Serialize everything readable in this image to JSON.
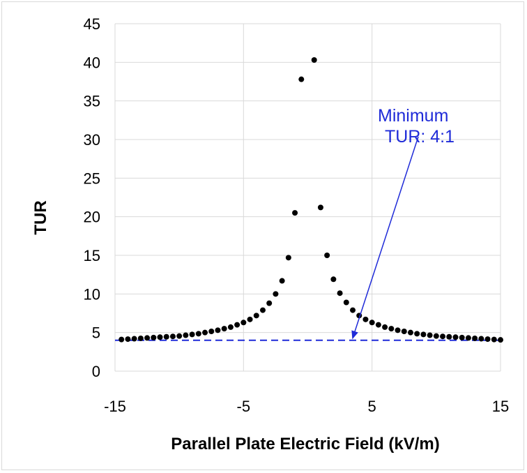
{
  "chart_data": {
    "type": "scatter",
    "xlabel": "Parallel Plate Electric Field (kV/m)",
    "ylabel": "TUR",
    "xlim": [
      -15,
      15
    ],
    "ylim": [
      0,
      45
    ],
    "x_ticks": [
      -15,
      -5,
      5,
      15
    ],
    "y_ticks": [
      0,
      5,
      10,
      15,
      20,
      25,
      30,
      35,
      40,
      45
    ],
    "grid": true,
    "colors": {
      "points": "#000000",
      "threshold": "#1f2bd8",
      "annotation": "#1f2bd8",
      "grid": "#d9d9d9"
    },
    "series": [
      {
        "values": [
          [
            -14.5,
            4.1
          ],
          [
            -14.0,
            4.15
          ],
          [
            -13.5,
            4.2
          ],
          [
            -13.0,
            4.25
          ],
          [
            -12.5,
            4.3
          ],
          [
            -12.0,
            4.35
          ],
          [
            -11.5,
            4.4
          ],
          [
            -11.0,
            4.45
          ],
          [
            -10.5,
            4.5
          ],
          [
            -10.0,
            4.55
          ],
          [
            -9.5,
            4.65
          ],
          [
            -9.0,
            4.75
          ],
          [
            -8.5,
            4.85
          ],
          [
            -8.0,
            5.0
          ],
          [
            -7.5,
            5.15
          ],
          [
            -7.0,
            5.3
          ],
          [
            -6.5,
            5.5
          ],
          [
            -6.0,
            5.7
          ],
          [
            -5.5,
            6.0
          ],
          [
            -5.0,
            6.3
          ],
          [
            -4.5,
            6.7
          ],
          [
            -4.0,
            7.2
          ],
          [
            -3.5,
            7.9
          ],
          [
            -3.0,
            8.8
          ],
          [
            -2.5,
            10.0
          ],
          [
            -2.0,
            11.7
          ],
          [
            -1.5,
            14.7
          ],
          [
            -1.0,
            20.5
          ],
          [
            -0.5,
            37.8
          ],
          [
            0.5,
            40.3
          ],
          [
            1.0,
            21.2
          ],
          [
            1.5,
            15.0
          ],
          [
            2.0,
            11.9
          ],
          [
            2.5,
            10.1
          ],
          [
            3.0,
            8.9
          ],
          [
            3.5,
            7.9
          ],
          [
            4.0,
            7.2
          ],
          [
            4.5,
            6.7
          ],
          [
            5.0,
            6.3
          ],
          [
            5.5,
            6.0
          ],
          [
            6.0,
            5.7
          ],
          [
            6.5,
            5.5
          ],
          [
            7.0,
            5.3
          ],
          [
            7.5,
            5.15
          ],
          [
            8.0,
            5.0
          ],
          [
            8.5,
            4.85
          ],
          [
            9.0,
            4.75
          ],
          [
            9.5,
            4.65
          ],
          [
            10.0,
            4.55
          ],
          [
            10.5,
            4.5
          ],
          [
            11.0,
            4.45
          ],
          [
            11.5,
            4.4
          ],
          [
            12.0,
            4.35
          ],
          [
            12.5,
            4.3
          ],
          [
            13.0,
            4.25
          ],
          [
            13.5,
            4.2
          ],
          [
            14.0,
            4.15
          ],
          [
            14.5,
            4.1
          ],
          [
            15.0,
            4.05
          ]
        ]
      }
    ],
    "threshold": {
      "y": 4,
      "style": "dashed"
    },
    "annotation": {
      "lines": [
        "Minimum",
        "TUR: 4:1"
      ],
      "arrow_target": [
        3.5,
        4.3
      ]
    }
  }
}
